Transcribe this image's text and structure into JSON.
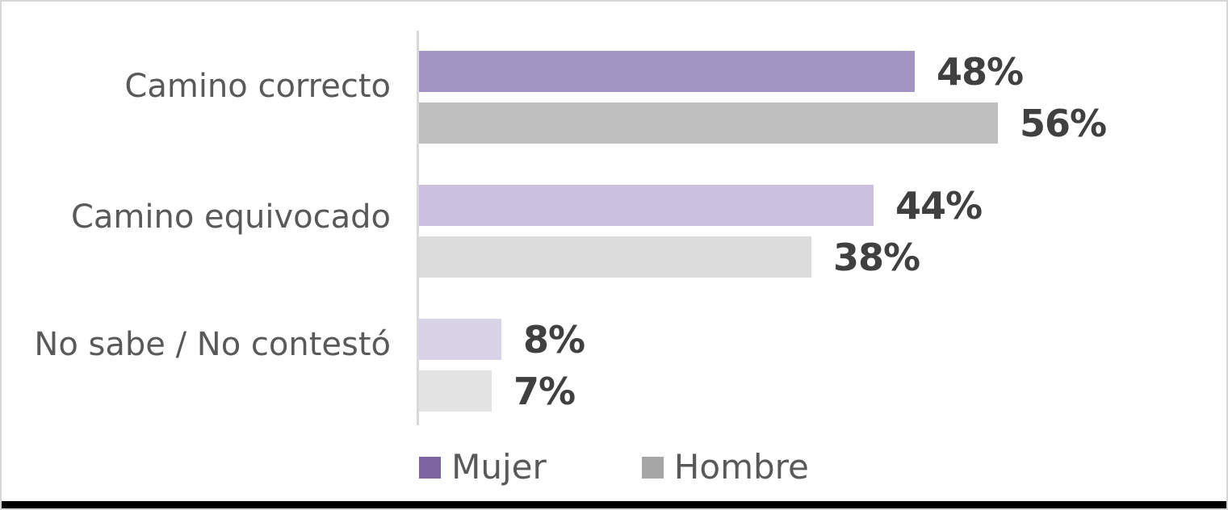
{
  "chart_data": {
    "type": "bar",
    "orientation": "horizontal",
    "title": "",
    "xlabel": "",
    "ylabel": "",
    "xlim": [
      0,
      60
    ],
    "grid": false,
    "legend_position": "bottom",
    "categories": [
      "Camino correcto",
      "Camino equivocado",
      "No sabe / No contestó"
    ],
    "series": [
      {
        "name": "Mujer",
        "values": [
          48,
          44,
          8
        ],
        "labels": [
          "48%",
          "44%",
          "8%"
        ],
        "bar_colors": [
          "#a294c3",
          "#cbc1de",
          "#d8d2e6"
        ],
        "legend_color": "#7c64a0"
      },
      {
        "name": "Hombre",
        "values": [
          56,
          38,
          7
        ],
        "labels": [
          "56%",
          "38%",
          "7%"
        ],
        "bar_colors": [
          "#bfbfbf",
          "#dbdbdb",
          "#e3e3e3"
        ],
        "legend_color": "#a6a6a6"
      }
    ]
  },
  "colors": {
    "axis_line": "#d9d9d9",
    "category_text": "#595959",
    "value_text": "#404040",
    "frame_border": "#d6d6d6",
    "bottom_strip": "#000000",
    "background": "#ffffff"
  }
}
